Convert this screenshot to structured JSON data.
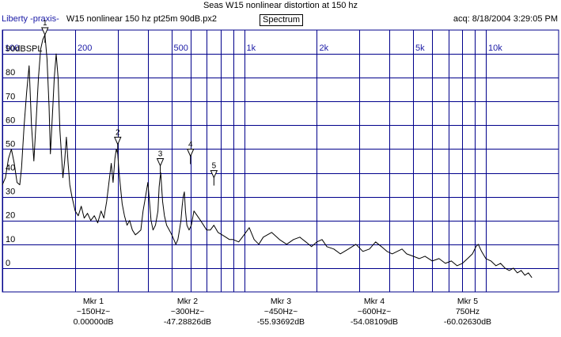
{
  "header": {
    "title": "Seas W15 nonlinear distortion at 150 hz",
    "app_name": "Liberty -praxis-",
    "file_name": "W15 nonlinear 150 hz pt25m 90dB.px2",
    "mode_button": "Spectrum",
    "acq_time": "acq: 8/18/2004 3:29:05 PM"
  },
  "colors": {
    "grid": "#00008b",
    "trace": "#000000",
    "freq_labels": "#1a1aa6"
  },
  "chart_data": {
    "type": "line",
    "title": "",
    "xlabel": "",
    "ylabel": "90dBSPL",
    "x_scale": "log",
    "xlim": [
      100,
      20000
    ],
    "ylim": [
      -10,
      100
    ],
    "grid": true,
    "x_ticks": [
      100,
      200,
      500,
      1000,
      2000,
      5000,
      10000
    ],
    "x_tick_labels": [
      "100",
      "200",
      "500",
      "1k",
      "2k",
      "5k",
      "10k"
    ],
    "x_gridlines": [
      100,
      200,
      300,
      400,
      500,
      600,
      700,
      800,
      900,
      1000,
      2000,
      3000,
      4000,
      5000,
      6000,
      7000,
      8000,
      9000,
      10000
    ],
    "y_ticks": [
      0,
      10,
      20,
      30,
      40,
      50,
      60,
      70,
      80,
      90
    ],
    "y_tick_labels": [
      "0",
      "10",
      "20",
      "30",
      "40",
      "50",
      "60",
      "70",
      "80",
      "90"
    ],
    "series": [
      {
        "points": [
          [
            100,
            35
          ],
          [
            103,
            38
          ],
          [
            106,
            46
          ],
          [
            109,
            50
          ],
          [
            112,
            44
          ],
          [
            115,
            36
          ],
          [
            118,
            35
          ],
          [
            120,
            42
          ],
          [
            123,
            60
          ],
          [
            126,
            74
          ],
          [
            129,
            85
          ],
          [
            132,
            60
          ],
          [
            135,
            45
          ],
          [
            138,
            62
          ],
          [
            141,
            80
          ],
          [
            144,
            92
          ],
          [
            147,
            96
          ],
          [
            150,
            98
          ],
          [
            153,
            88
          ],
          [
            156,
            68
          ],
          [
            158,
            48
          ],
          [
            161,
            64
          ],
          [
            164,
            80
          ],
          [
            167,
            90
          ],
          [
            170,
            80
          ],
          [
            173,
            58
          ],
          [
            176,
            46
          ],
          [
            178,
            38
          ],
          [
            181,
            45
          ],
          [
            184,
            55
          ],
          [
            187,
            44
          ],
          [
            190,
            35
          ],
          [
            194,
            30
          ],
          [
            200,
            24
          ],
          [
            206,
            22
          ],
          [
            212,
            26
          ],
          [
            218,
            21
          ],
          [
            225,
            23
          ],
          [
            232,
            20
          ],
          [
            240,
            22
          ],
          [
            248,
            19
          ],
          [
            256,
            24
          ],
          [
            263,
            21
          ],
          [
            270,
            28
          ],
          [
            276,
            36
          ],
          [
            282,
            44
          ],
          [
            287,
            36
          ],
          [
            292,
            46
          ],
          [
            296,
            50
          ],
          [
            300,
            48
          ],
          [
            304,
            40
          ],
          [
            308,
            34
          ],
          [
            313,
            27
          ],
          [
            320,
            22
          ],
          [
            328,
            18
          ],
          [
            336,
            20
          ],
          [
            345,
            16
          ],
          [
            355,
            14
          ],
          [
            365,
            15
          ],
          [
            374,
            16
          ],
          [
            382,
            24
          ],
          [
            388,
            28
          ],
          [
            394,
            32
          ],
          [
            400,
            36
          ],
          [
            406,
            28
          ],
          [
            412,
            20
          ],
          [
            420,
            16
          ],
          [
            430,
            18
          ],
          [
            440,
            24
          ],
          [
            445,
            34
          ],
          [
            449,
            38
          ],
          [
            452,
            40
          ],
          [
            456,
            34
          ],
          [
            460,
            28
          ],
          [
            468,
            22
          ],
          [
            478,
            18
          ],
          [
            490,
            16
          ],
          [
            502,
            14
          ],
          [
            512,
            12
          ],
          [
            522,
            10
          ],
          [
            532,
            12
          ],
          [
            540,
            16
          ],
          [
            548,
            20
          ],
          [
            554,
            26
          ],
          [
            560,
            30
          ],
          [
            566,
            32
          ],
          [
            572,
            24
          ],
          [
            580,
            18
          ],
          [
            592,
            16
          ],
          [
            605,
            18
          ],
          [
            620,
            24
          ],
          [
            640,
            22
          ],
          [
            660,
            20
          ],
          [
            680,
            18
          ],
          [
            700,
            16
          ],
          [
            725,
            16
          ],
          [
            750,
            18
          ],
          [
            780,
            15
          ],
          [
            810,
            14
          ],
          [
            840,
            13
          ],
          [
            870,
            12
          ],
          [
            900,
            12
          ],
          [
            950,
            11
          ],
          [
            1000,
            14
          ],
          [
            1050,
            17
          ],
          [
            1100,
            12
          ],
          [
            1150,
            10
          ],
          [
            1200,
            13
          ],
          [
            1300,
            15
          ],
          [
            1400,
            12
          ],
          [
            1500,
            10
          ],
          [
            1600,
            12
          ],
          [
            1700,
            13
          ],
          [
            1800,
            11
          ],
          [
            1900,
            9
          ],
          [
            2000,
            11
          ],
          [
            2100,
            12
          ],
          [
            2200,
            9
          ],
          [
            2350,
            8
          ],
          [
            2500,
            6
          ],
          [
            2700,
            8
          ],
          [
            2900,
            10
          ],
          [
            3100,
            7
          ],
          [
            3300,
            8
          ],
          [
            3500,
            11
          ],
          [
            3700,
            9
          ],
          [
            3900,
            7
          ],
          [
            4100,
            6
          ],
          [
            4300,
            7
          ],
          [
            4500,
            8
          ],
          [
            4700,
            6
          ],
          [
            5000,
            5
          ],
          [
            5300,
            4
          ],
          [
            5600,
            5
          ],
          [
            6000,
            3
          ],
          [
            6400,
            4
          ],
          [
            6800,
            2
          ],
          [
            7200,
            3
          ],
          [
            7600,
            1
          ],
          [
            8000,
            2
          ],
          [
            8400,
            4
          ],
          [
            8800,
            6
          ],
          [
            9100,
            9
          ],
          [
            9300,
            10
          ],
          [
            9600,
            7
          ],
          [
            10000,
            4
          ],
          [
            10500,
            3
          ],
          [
            11000,
            1
          ],
          [
            11500,
            2
          ],
          [
            12000,
            0
          ],
          [
            12500,
            -1
          ],
          [
            13000,
            0
          ],
          [
            13500,
            -2
          ],
          [
            14000,
            -1
          ],
          [
            14500,
            -3
          ],
          [
            15000,
            -2
          ],
          [
            15500,
            -4
          ]
        ]
      }
    ],
    "annotations": [
      {
        "label": "1",
        "x": 150,
        "y": 98
      },
      {
        "label": "2",
        "x": 300,
        "y": 52
      },
      {
        "label": "3",
        "x": 450,
        "y": 43
      },
      {
        "label": "4",
        "x": 600,
        "y": 47
      },
      {
        "label": "5",
        "x": 750,
        "y": 38
      }
    ]
  },
  "markers": [
    {
      "name": "Mkr 1",
      "freq": "~150Hz~",
      "value": "0.00000dB"
    },
    {
      "name": "Mkr 2",
      "freq": "~300Hz~",
      "value": "-47.28826dB"
    },
    {
      "name": "Mkr 3",
      "freq": "~450Hz~",
      "value": "-55.93692dB"
    },
    {
      "name": "Mkr 4",
      "freq": "~600Hz~",
      "value": "-54.08109dB"
    },
    {
      "name": "Mkr 5",
      "freq": "750Hz",
      "value": "-60.02630dB"
    }
  ]
}
